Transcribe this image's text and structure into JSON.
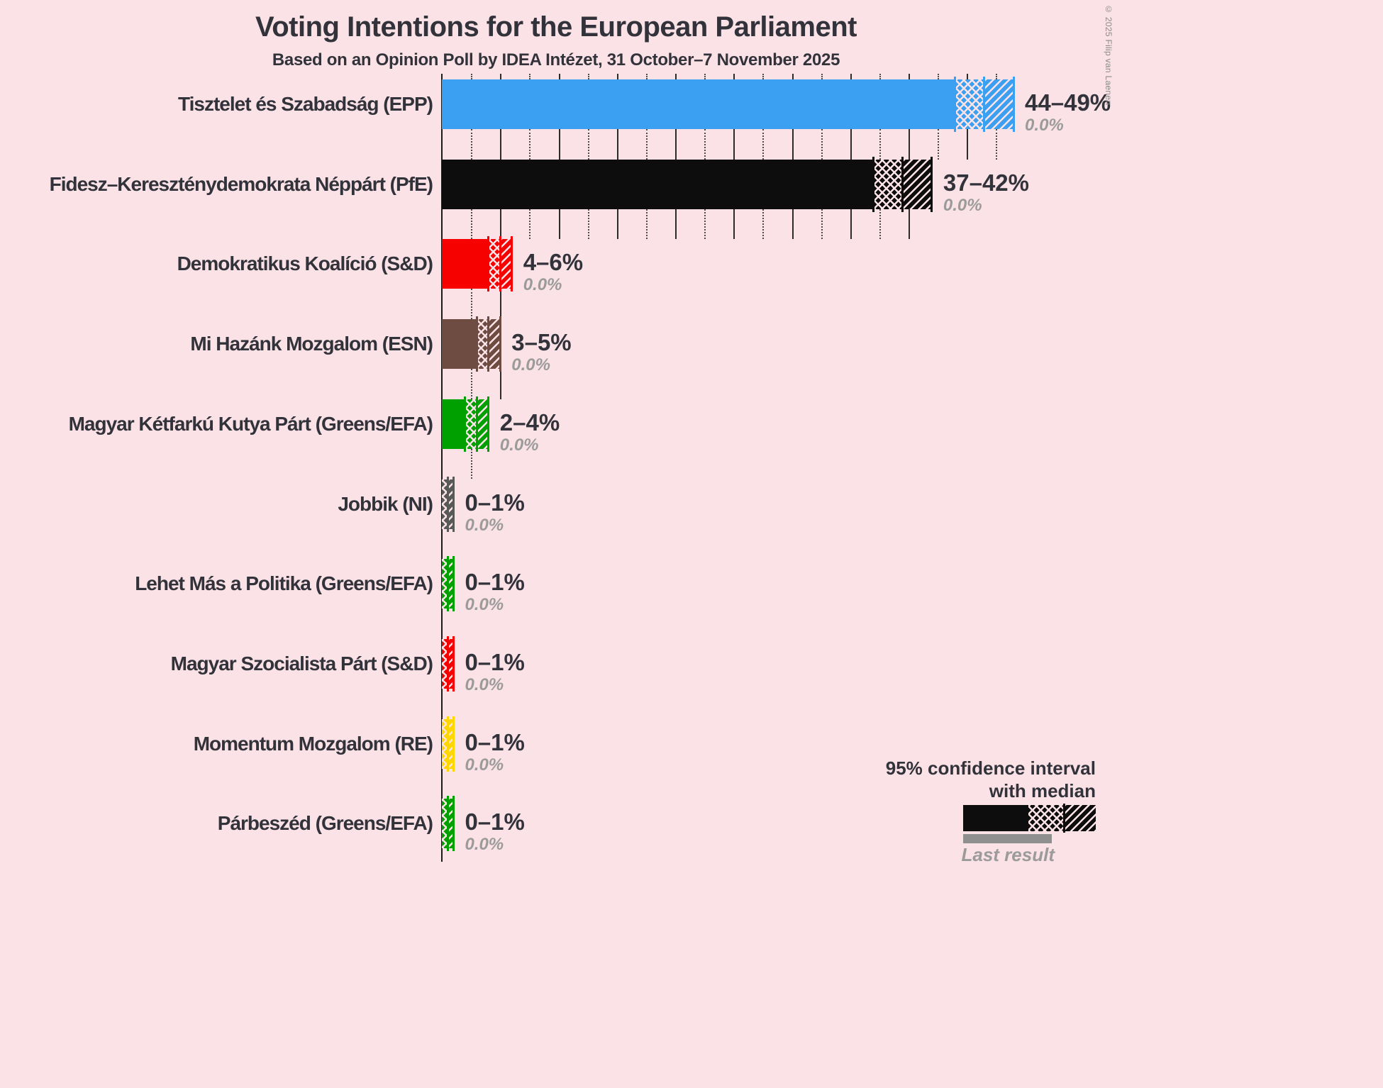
{
  "title": "Voting Intentions for the European Parliament",
  "subtitle": "Based on an Opinion Poll by IDEA Intézet, 31 October–7 November 2025",
  "copyright": "© 2025 Filip van Laenen",
  "legend": {
    "ci_line1": "95% confidence interval",
    "ci_line2": "with median",
    "last_result": "Last result"
  },
  "colors": {
    "background": "#fbe2e6",
    "text": "#32323a",
    "muted_text": "#9b9b9b",
    "legend_sample": "#0d0d0d",
    "last_result_bar": "#8f8f8f",
    "gridline": "#4b4b4b"
  },
  "chart_data": {
    "type": "bar",
    "orientation": "horizontal",
    "unit": "percent",
    "title": "Voting Intentions for the European Parliament",
    "subtitle": "Based on an Opinion Poll by IDEA Intézet, 31 October–7 November 2025",
    "x_axis": {
      "min": 0,
      "max": 52,
      "gridline_step_pct": 2.5,
      "major_step_pct": 5
    },
    "legend_note": "95% confidence interval with median; gray bar = last result",
    "bars": [
      {
        "party": "Tisztelet és Szabadság (EPP)",
        "color": "#3ba0f2",
        "ci_low": 44,
        "median": 46.5,
        "ci_high": 49,
        "label": "44–49%",
        "last_result": "0.0%"
      },
      {
        "party": "Fidesz–Kereszténydemokrata Néppárt (PfE)",
        "color": "#0d0d0d",
        "ci_low": 37,
        "median": 39.5,
        "ci_high": 42,
        "label": "37–42%",
        "last_result": "0.0%"
      },
      {
        "party": "Demokratikus Koalíció (S&D)",
        "color": "#f60000",
        "ci_low": 4,
        "median": 5,
        "ci_high": 6,
        "label": "4–6%",
        "last_result": "0.0%"
      },
      {
        "party": "Mi Hazánk Mozgalom (ESN)",
        "color": "#6e4c41",
        "ci_low": 3,
        "median": 4,
        "ci_high": 5,
        "label": "3–5%",
        "last_result": "0.0%"
      },
      {
        "party": "Magyar Kétfarkú Kutya Párt (Greens/EFA)",
        "color": "#00a000",
        "ci_low": 2,
        "median": 3,
        "ci_high": 4,
        "label": "2–4%",
        "last_result": "0.0%"
      },
      {
        "party": "Jobbik (NI)",
        "color": "#595959",
        "ci_low": 0,
        "median": 0.5,
        "ci_high": 1,
        "label": "0–1%",
        "last_result": "0.0%"
      },
      {
        "party": "Lehet Más a Politika (Greens/EFA)",
        "color": "#00a000",
        "ci_low": 0,
        "median": 0.5,
        "ci_high": 1,
        "label": "0–1%",
        "last_result": "0.0%"
      },
      {
        "party": "Magyar Szocialista Párt (S&D)",
        "color": "#f60000",
        "ci_low": 0,
        "median": 0.5,
        "ci_high": 1,
        "label": "0–1%",
        "last_result": "0.0%"
      },
      {
        "party": "Momentum Mozgalom (RE)",
        "color": "#ffd700",
        "ci_low": 0,
        "median": 0.5,
        "ci_high": 1,
        "label": "0–1%",
        "last_result": "0.0%"
      },
      {
        "party": "Párbeszéd (Greens/EFA)",
        "color": "#00a000",
        "ci_low": 0,
        "median": 0.5,
        "ci_high": 1,
        "label": "0–1%",
        "last_result": "0.0%"
      }
    ]
  }
}
